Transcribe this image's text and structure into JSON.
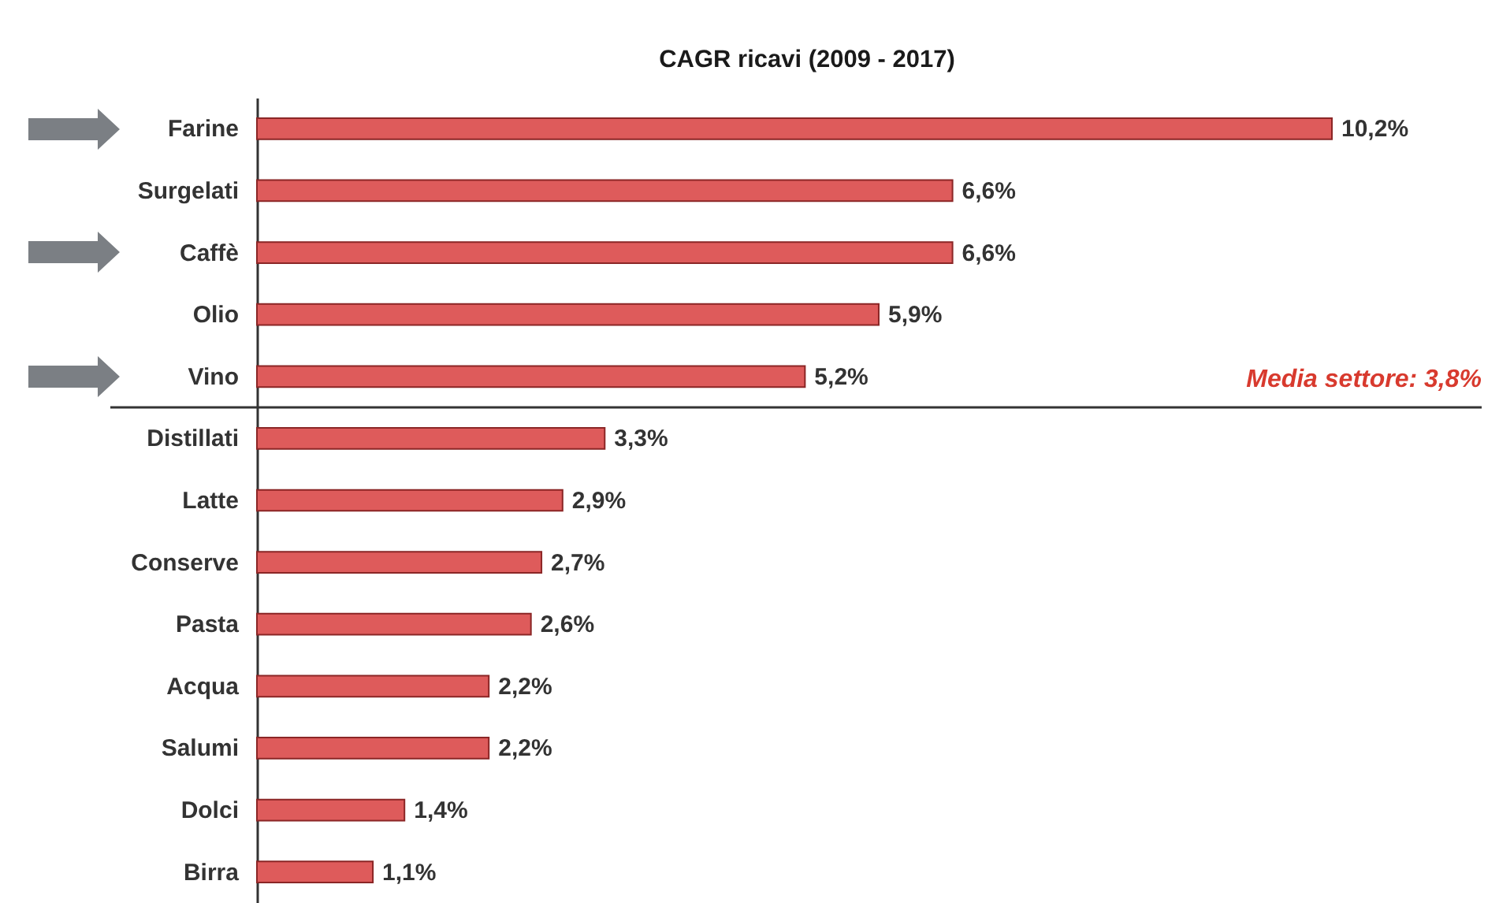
{
  "chart_data": {
    "type": "bar",
    "orientation": "horizontal",
    "title": "CAGR ricavi (2009 - 2017)",
    "categories": [
      "Farine",
      "Surgelati",
      "Caffè",
      "Olio",
      "Vino",
      "Distillati",
      "Latte",
      "Conserve",
      "Pasta",
      "Acqua",
      "Salumi",
      "Dolci",
      "Birra"
    ],
    "values": [
      10.2,
      6.6,
      6.6,
      5.9,
      5.2,
      3.3,
      2.9,
      2.7,
      2.6,
      2.2,
      2.2,
      1.4,
      1.1
    ],
    "value_labels": [
      "10,2%",
      "6,6%",
      "6,6%",
      "5,9%",
      "5,2%",
      "3,3%",
      "2,9%",
      "2,7%",
      "2,6%",
      "2,2%",
      "2,2%",
      "1,4%",
      "1,1%"
    ],
    "color": "#de5b5b",
    "ref_lines": [
      {
        "axis": "y",
        "value": "Vino",
        "label": "Media settore: 3,8%",
        "color": "#333333"
      }
    ]
  }
}
